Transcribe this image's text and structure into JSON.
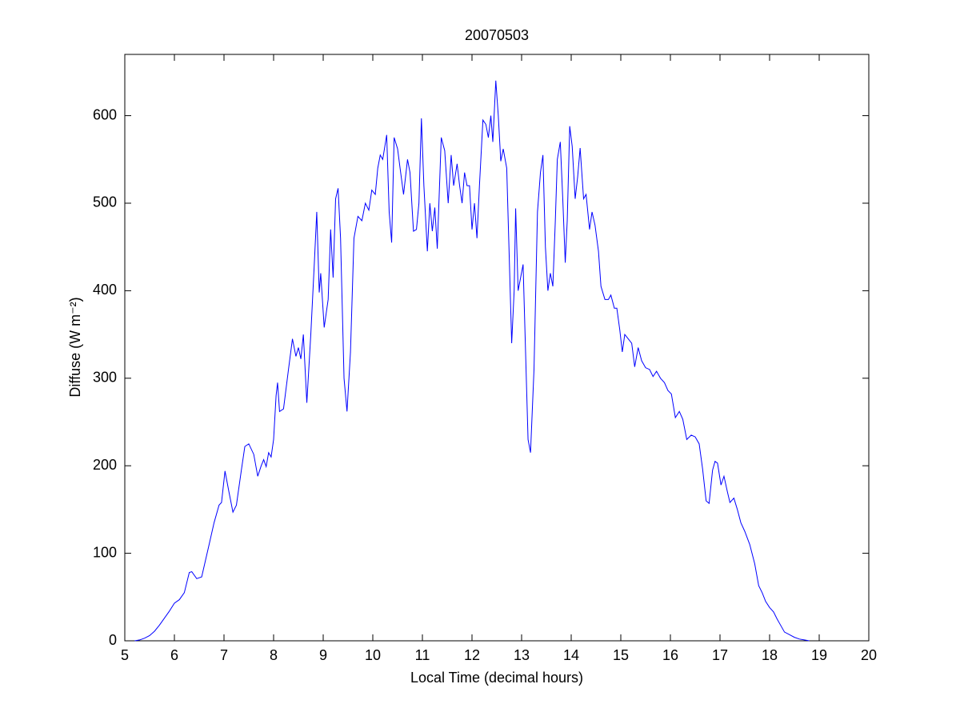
{
  "chart_data": {
    "type": "line",
    "title": "20070503",
    "xlabel": "Local Time (decimal hours)",
    "ylabel": "Diffuse (W m⁻²)",
    "xlim": [
      5,
      20
    ],
    "ylim": [
      0,
      670
    ],
    "xticks": [
      5,
      6,
      7,
      8,
      9,
      10,
      11,
      12,
      13,
      14,
      15,
      16,
      17,
      18,
      19,
      20
    ],
    "yticks": [
      0,
      100,
      200,
      300,
      400,
      500,
      600
    ],
    "series": [
      {
        "color": "#0000ff",
        "x": [
          5.2,
          5.3,
          5.4,
          5.5,
          5.6,
          5.7,
          5.8,
          5.9,
          6.0,
          6.1,
          6.2,
          6.3,
          6.35,
          6.45,
          6.55,
          6.7,
          6.8,
          6.9,
          6.95,
          7.02,
          7.1,
          7.18,
          7.25,
          7.35,
          7.42,
          7.5,
          7.6,
          7.68,
          7.75,
          7.8,
          7.85,
          7.9,
          7.95,
          8.0,
          8.05,
          8.08,
          8.12,
          8.2,
          8.3,
          8.38,
          8.45,
          8.5,
          8.55,
          8.6,
          8.67,
          8.75,
          8.82,
          8.87,
          8.92,
          8.95,
          9.02,
          9.1,
          9.15,
          9.2,
          9.25,
          9.3,
          9.35,
          9.42,
          9.48,
          9.55,
          9.62,
          9.7,
          9.78,
          9.85,
          9.92,
          9.98,
          10.05,
          10.1,
          10.15,
          10.2,
          10.28,
          10.33,
          10.38,
          10.43,
          10.5,
          10.55,
          10.62,
          10.7,
          10.75,
          10.82,
          10.88,
          10.93,
          10.98,
          11.03,
          11.1,
          11.15,
          11.2,
          11.25,
          11.3,
          11.38,
          11.45,
          11.52,
          11.58,
          11.63,
          11.7,
          11.75,
          11.8,
          11.85,
          11.9,
          11.95,
          12.0,
          12.05,
          12.1,
          12.15,
          12.22,
          12.28,
          12.33,
          12.38,
          12.42,
          12.48,
          12.53,
          12.58,
          12.63,
          12.7,
          12.75,
          12.8,
          12.85,
          12.88,
          12.93,
          12.98,
          13.03,
          13.08,
          13.13,
          13.18,
          13.25,
          13.32,
          13.38,
          13.43,
          13.48,
          13.53,
          13.58,
          13.63,
          13.68,
          13.72,
          13.78,
          13.83,
          13.88,
          13.92,
          13.97,
          14.02,
          14.08,
          14.13,
          14.18,
          14.25,
          14.3,
          14.37,
          14.42,
          14.48,
          14.55,
          14.6,
          14.68,
          14.75,
          14.8,
          14.87,
          14.92,
          14.98,
          15.03,
          15.08,
          15.15,
          15.22,
          15.28,
          15.35,
          15.42,
          15.5,
          15.58,
          15.65,
          15.72,
          15.8,
          15.88,
          15.95,
          16.02,
          16.1,
          16.18,
          16.25,
          16.33,
          16.42,
          16.5,
          16.58,
          16.65,
          16.72,
          16.78,
          16.85,
          16.9,
          16.95,
          17.02,
          17.08,
          17.15,
          17.2,
          17.28,
          17.35,
          17.42,
          17.5,
          17.6,
          17.7,
          17.78,
          17.85,
          17.92,
          18.0,
          18.08,
          18.15,
          18.22,
          18.3,
          18.4,
          18.5,
          18.6,
          18.7,
          18.8
        ],
        "values": [
          0,
          1,
          3,
          6,
          11,
          18,
          26,
          34,
          43,
          47,
          55,
          78,
          79,
          71,
          73,
          110,
          135,
          155,
          158,
          194,
          170,
          147,
          155,
          195,
          222,
          225,
          213,
          188,
          200,
          207,
          199,
          215,
          210,
          230,
          280,
          295,
          262,
          265,
          310,
          345,
          325,
          335,
          322,
          350,
          272,
          350,
          430,
          490,
          398,
          420,
          358,
          390,
          470,
          415,
          505,
          517,
          460,
          300,
          262,
          330,
          460,
          485,
          480,
          500,
          492,
          515,
          510,
          540,
          555,
          550,
          578,
          490,
          455,
          575,
          562,
          540,
          510,
          550,
          535,
          468,
          470,
          500,
          597,
          520,
          445,
          500,
          468,
          495,
          448,
          575,
          560,
          500,
          555,
          520,
          545,
          520,
          500,
          535,
          520,
          520,
          470,
          500,
          460,
          520,
          595,
          590,
          575,
          600,
          570,
          640,
          600,
          548,
          562,
          540,
          440,
          340,
          400,
          494,
          400,
          415,
          430,
          330,
          230,
          215,
          310,
          490,
          535,
          555,
          450,
          400,
          420,
          405,
          480,
          550,
          570,
          505,
          432,
          480,
          588,
          565,
          505,
          530,
          563,
          505,
          510,
          470,
          490,
          475,
          445,
          405,
          390,
          390,
          395,
          380,
          380,
          355,
          330,
          350,
          345,
          340,
          313,
          335,
          320,
          312,
          310,
          302,
          308,
          300,
          295,
          286,
          282,
          255,
          262,
          253,
          230,
          235,
          233,
          225,
          196,
          160,
          157,
          195,
          205,
          203,
          178,
          188,
          170,
          158,
          163,
          150,
          135,
          125,
          110,
          88,
          63,
          55,
          45,
          38,
          33,
          25,
          18,
          10,
          7,
          4,
          2,
          1,
          0
        ]
      }
    ]
  }
}
